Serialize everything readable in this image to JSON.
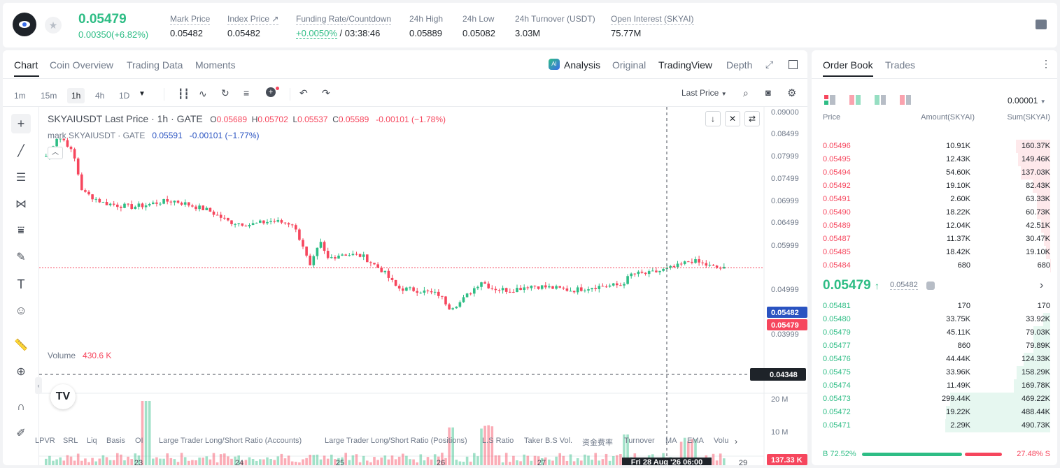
{
  "ticker": {
    "last_price": "0.05479",
    "change": "0.00350(+6.82%)",
    "fields": [
      {
        "label": "Mark Price",
        "value": "0.05482"
      },
      {
        "label": "Index Price",
        "value": "0.05482"
      },
      {
        "label": "Funding Rate/Countdown",
        "value_rate": "+0.0050%",
        "value_countdown": "/ 03:38:46"
      },
      {
        "label": "24h High",
        "value": "0.05889"
      },
      {
        "label": "24h Low",
        "value": "0.05082"
      },
      {
        "label": "24h Turnover (USDT)",
        "value": "3.03M"
      },
      {
        "label": "Open Interest (SKYAI)",
        "value": "75.77M"
      }
    ]
  },
  "chart_tabs": [
    "Chart",
    "Coin Overview",
    "Trading Data",
    "Moments"
  ],
  "view_tabs": [
    "Analysis",
    "Original",
    "TradingView",
    "Depth"
  ],
  "timeframes": [
    "1m",
    "15m",
    "1h",
    "4h",
    "1D"
  ],
  "price_type": "Last Price",
  "legend": {
    "main_title": "SKYAIUSDT Last Price · 1h · GATE",
    "o_label": "O",
    "o": "0.05689",
    "h_label": "H",
    "h": "0.05702",
    "l_label": "L",
    "l": "0.05537",
    "c_label": "C",
    "c": "0.05589",
    "chg": "-0.00101 (−1.78%)",
    "mark_title": "mark SKYAIUSDT · GATE",
    "mark_value": "0.05591",
    "mark_chg": "-0.00101 (−1.77%)"
  },
  "price_axis": [
    "0.09000",
    "0.08499",
    "0.07999",
    "0.07499",
    "0.06999",
    "0.06499",
    "0.05999",
    "0.05482",
    "0.05479",
    "0.04999",
    "0.04499",
    "0.04348",
    "0.03999"
  ],
  "volume_axis": [
    "20 M",
    "10 M",
    "137.33 K"
  ],
  "volume_label": "Volume",
  "volume_value": "430.6 K",
  "time_axis": [
    "23",
    "24",
    "25",
    "26",
    "27",
    "29"
  ],
  "crosshair_time": "Fri 28 Aug '26   06:00",
  "indicators": [
    "LPVR",
    "SRL",
    "Liq",
    "Basis",
    "OI",
    "Large Trader Long/Short Ratio (Accounts)",
    "Large Trader Long/Short Ratio (Positions)",
    "L.S Ratio",
    "Taker B.S Vol.",
    "资金费率",
    "Turnover",
    "MA",
    "EMA",
    "Volu"
  ],
  "orderbook": {
    "tabs": [
      "Order Book",
      "Trades"
    ],
    "precision": "0.00001",
    "headers": [
      "Price",
      "Amount(SKYAI)",
      "Sum(SKYAI)"
    ],
    "asks": [
      {
        "price": "0.05496",
        "amount": "10.91K",
        "sum": "160.37K",
        "depth": 0.327
      },
      {
        "price": "0.05495",
        "amount": "12.43K",
        "sum": "149.46K",
        "depth": 0.305
      },
      {
        "price": "0.05494",
        "amount": "54.60K",
        "sum": "137.03K",
        "depth": 0.279
      },
      {
        "price": "0.05492",
        "amount": "19.10K",
        "sum": "82.43K",
        "depth": 0.168
      },
      {
        "price": "0.05491",
        "amount": "2.60K",
        "sum": "63.33K",
        "depth": 0.129
      },
      {
        "price": "0.05490",
        "amount": "18.22K",
        "sum": "60.73K",
        "depth": 0.124
      },
      {
        "price": "0.05489",
        "amount": "12.04K",
        "sum": "42.51K",
        "depth": 0.087
      },
      {
        "price": "0.05487",
        "amount": "11.37K",
        "sum": "30.47K",
        "depth": 0.062
      },
      {
        "price": "0.05485",
        "amount": "18.42K",
        "sum": "19.10K",
        "depth": 0.039
      },
      {
        "price": "0.05484",
        "amount": "680",
        "sum": "680",
        "depth": 0.002
      }
    ],
    "mid_price": "0.05479",
    "mid_mark": "0.05482",
    "bids": [
      {
        "price": "0.05481",
        "amount": "170",
        "sum": "170",
        "depth": 0.0004
      },
      {
        "price": "0.05480",
        "amount": "33.75K",
        "sum": "33.92K",
        "depth": 0.069
      },
      {
        "price": "0.05479",
        "amount": "45.11K",
        "sum": "79.03K",
        "depth": 0.161
      },
      {
        "price": "0.05477",
        "amount": "860",
        "sum": "79.89K",
        "depth": 0.163
      },
      {
        "price": "0.05476",
        "amount": "44.44K",
        "sum": "124.33K",
        "depth": 0.253
      },
      {
        "price": "0.05475",
        "amount": "33.96K",
        "sum": "158.29K",
        "depth": 0.323
      },
      {
        "price": "0.05474",
        "amount": "11.49K",
        "sum": "169.78K",
        "depth": 0.346
      },
      {
        "price": "0.05473",
        "amount": "299.44K",
        "sum": "469.22K",
        "depth": 0.956
      },
      {
        "price": "0.05472",
        "amount": "19.22K",
        "sum": "488.44K",
        "depth": 0.995
      },
      {
        "price": "0.05471",
        "amount": "2.29K",
        "sum": "490.73K",
        "depth": 1.0
      }
    ],
    "buy_ratio": "B 72.52%",
    "sell_ratio": "27.48% S",
    "buy_fraction": 0.7252
  },
  "colors": {
    "up": "#2ebd85",
    "down": "#f6465d",
    "accent": "#1e2329"
  }
}
